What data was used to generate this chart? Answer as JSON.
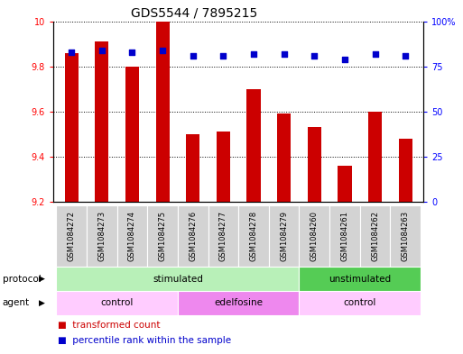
{
  "title": "GDS5544 / 7895215",
  "samples": [
    "GSM1084272",
    "GSM1084273",
    "GSM1084274",
    "GSM1084275",
    "GSM1084276",
    "GSM1084277",
    "GSM1084278",
    "GSM1084279",
    "GSM1084260",
    "GSM1084261",
    "GSM1084262",
    "GSM1084263"
  ],
  "bar_values": [
    9.86,
    9.91,
    9.8,
    10.0,
    9.5,
    9.51,
    9.7,
    9.59,
    9.53,
    9.36,
    9.6,
    9.48
  ],
  "percentile_values": [
    83,
    84,
    83,
    84,
    81,
    81,
    82,
    82,
    81,
    79,
    82,
    81
  ],
  "ymin": 9.2,
  "ymax": 10.0,
  "yticks": [
    9.2,
    9.4,
    9.6,
    9.8,
    10.0
  ],
  "ytick_labels": [
    "9.2",
    "9.4",
    "9.6",
    "9.8",
    "10"
  ],
  "y2min": 0,
  "y2max": 100,
  "y2ticks": [
    0,
    25,
    50,
    75,
    100
  ],
  "y2ticklabels": [
    "0",
    "25",
    "50",
    "75",
    "100%"
  ],
  "bar_color": "#cc0000",
  "dot_color": "#0000cc",
  "bar_width": 0.45,
  "protocol_groups": [
    {
      "label": "stimulated",
      "start": 0,
      "end": 8,
      "color": "#b8f0b8"
    },
    {
      "label": "unstimulated",
      "start": 8,
      "end": 12,
      "color": "#55cc55"
    }
  ],
  "agent_groups": [
    {
      "label": "control",
      "start": 0,
      "end": 4,
      "color": "#ffccff"
    },
    {
      "label": "edelfosine",
      "start": 4,
      "end": 8,
      "color": "#ee88ee"
    },
    {
      "label": "control",
      "start": 8,
      "end": 12,
      "color": "#ffccff"
    }
  ],
  "legend_bar_label": "transformed count",
  "legend_dot_label": "percentile rank within the sample",
  "protocol_label": "protocol",
  "agent_label": "agent",
  "title_fontsize": 10,
  "tick_fontsize": 7,
  "label_fontsize": 7.5,
  "group_fontsize": 7.5,
  "gsm_fontsize": 6,
  "dot_size": 15
}
